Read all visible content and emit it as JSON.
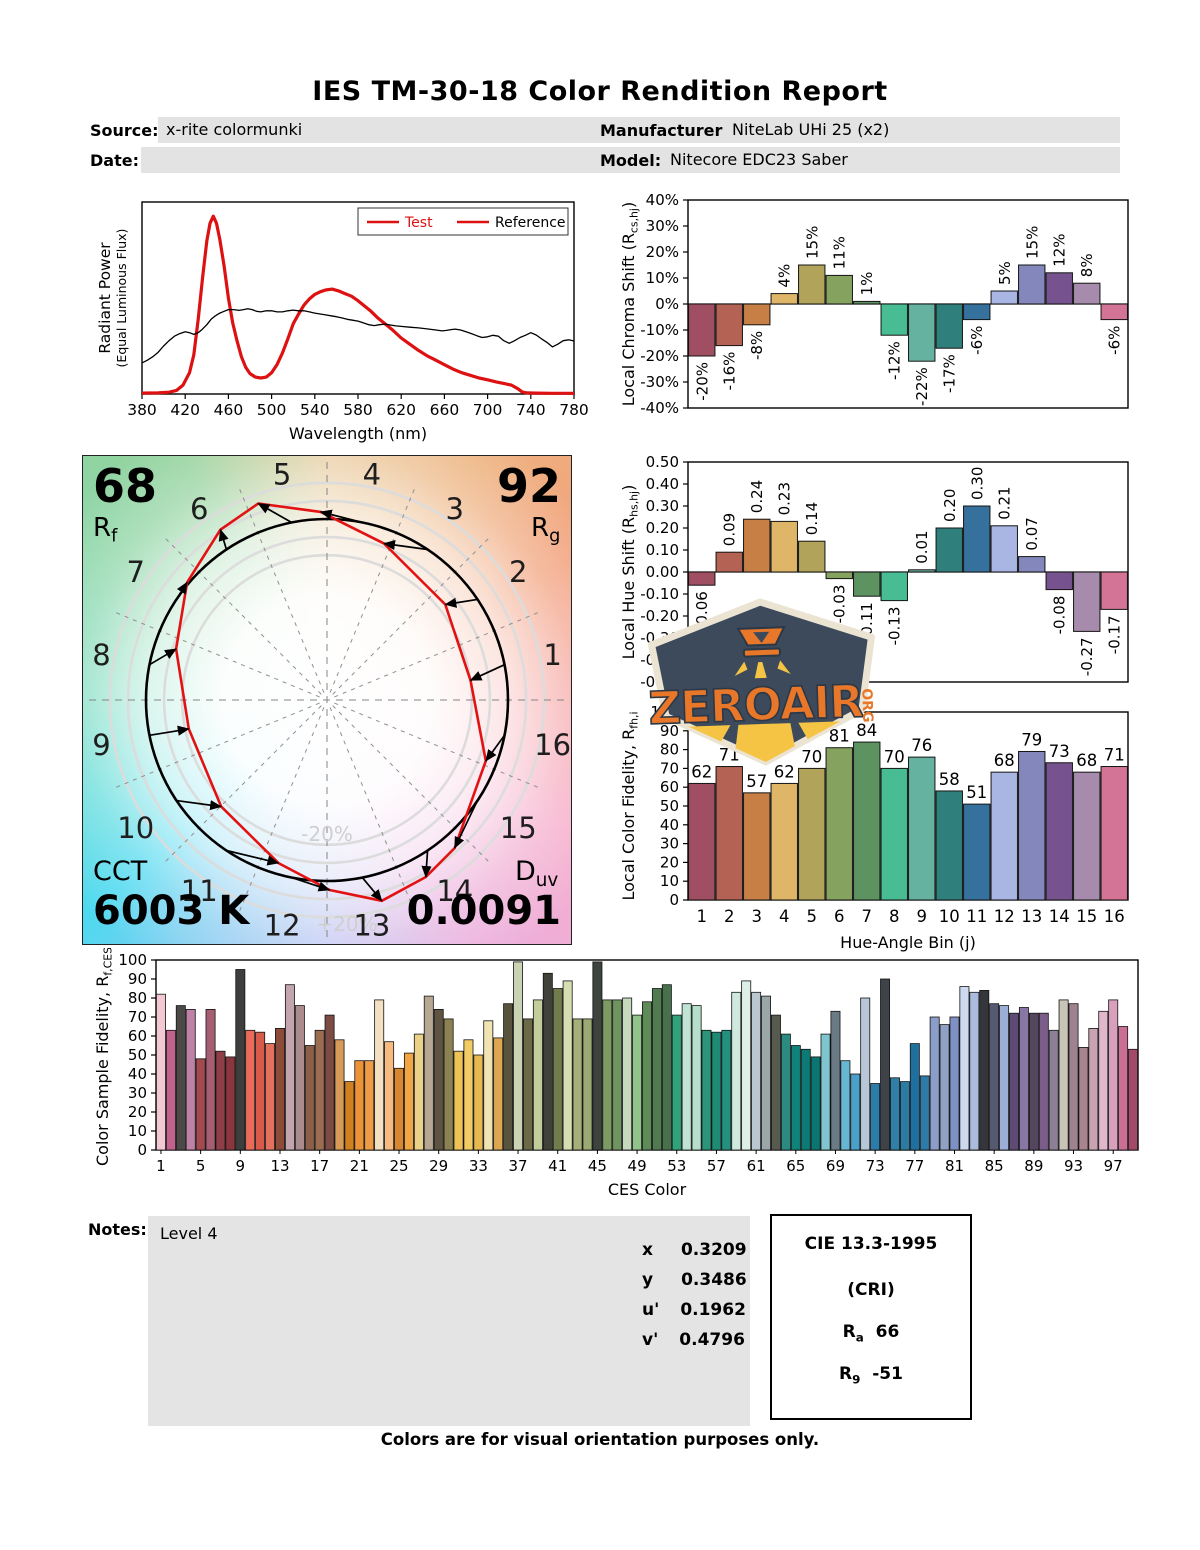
{
  "title": "IES TM-30-18 Color Rendition Report",
  "header": {
    "source_label": "Source:",
    "source_value": "x-rite colormunki",
    "date_label": "Date:",
    "date_value": "",
    "manufacturer_label": "Manufacturer:",
    "manufacturer_value": "NiteLab UHi 25 (x2)",
    "model_label": "Model:",
    "model_value": "Nitecore EDC23 Saber"
  },
  "logo": {
    "text": "ZEROAIR",
    "suffix": "ORG"
  },
  "notes": {
    "label": "Notes:",
    "text": "Level 4"
  },
  "chromaticity": {
    "rows": [
      {
        "label": "x",
        "value": "0.3209"
      },
      {
        "label": "y",
        "value": "0.3486"
      },
      {
        "label": "u'",
        "value": "0.1962"
      },
      {
        "label": "v'",
        "value": "0.4796"
      }
    ]
  },
  "cri": {
    "title": "CIE 13.3-1995",
    "subtitle": "(CRI)",
    "ra_base": "R",
    "ra_sub": "a",
    "ra_value": "66",
    "r9_base": "R",
    "r9_sub": "9",
    "r9_value": "-51"
  },
  "footer": "Colors are for visual orientation purposes only.",
  "hue_bin_colors": [
    "#a04e62",
    "#b46253",
    "#c77f46",
    "#dfb667",
    "#b1a35a",
    "#85a35f",
    "#5d9361",
    "#48bd94",
    "#66b2a1",
    "#2f7f7c",
    "#36719d",
    "#a9b5e2",
    "#8487bc",
    "#76538f",
    "#a68bac",
    "#d37496"
  ],
  "chart_data": [
    {
      "id": "spectral",
      "type": "line",
      "title": "",
      "xlabel": "Wavelength (nm)",
      "ylabel_line1": "Radiant Power",
      "ylabel_line2": "(Equal Luminous Flux)",
      "xlim": [
        380,
        780
      ],
      "ylim": [
        0,
        1.08
      ],
      "xticks": [
        380,
        420,
        460,
        500,
        540,
        580,
        620,
        660,
        700,
        740,
        780
      ],
      "legend": [
        {
          "name": "Test",
          "color": "#dd1111",
          "text_color": "#dd1111"
        },
        {
          "name": "Reference",
          "color": "#dd1111",
          "text_color": "#000000"
        }
      ],
      "series": [
        {
          "name": "Test",
          "color": "#dd1111",
          "width": 3.2,
          "points": [
            [
              380,
              0.005
            ],
            [
              395,
              0.006
            ],
            [
              405,
              0.01
            ],
            [
              412,
              0.02
            ],
            [
              418,
              0.05
            ],
            [
              424,
              0.12
            ],
            [
              428,
              0.22
            ],
            [
              432,
              0.42
            ],
            [
              436,
              0.65
            ],
            [
              440,
              0.86
            ],
            [
              443,
              0.96
            ],
            [
              446,
              1.0
            ],
            [
              449,
              0.96
            ],
            [
              452,
              0.87
            ],
            [
              456,
              0.72
            ],
            [
              460,
              0.54
            ],
            [
              464,
              0.4
            ],
            [
              468,
              0.3
            ],
            [
              472,
              0.21
            ],
            [
              476,
              0.15
            ],
            [
              480,
              0.115
            ],
            [
              485,
              0.095
            ],
            [
              490,
              0.09
            ],
            [
              495,
              0.095
            ],
            [
              500,
              0.12
            ],
            [
              505,
              0.165
            ],
            [
              510,
              0.23
            ],
            [
              515,
              0.31
            ],
            [
              520,
              0.395
            ],
            [
              525,
              0.45
            ],
            [
              530,
              0.5
            ],
            [
              535,
              0.535
            ],
            [
              540,
              0.56
            ],
            [
              545,
              0.575
            ],
            [
              550,
              0.585
            ],
            [
              556,
              0.59
            ],
            [
              562,
              0.58
            ],
            [
              568,
              0.565
            ],
            [
              574,
              0.55
            ],
            [
              580,
              0.525
            ],
            [
              586,
              0.495
            ],
            [
              592,
              0.465
            ],
            [
              598,
              0.43
            ],
            [
              605,
              0.395
            ],
            [
              612,
              0.36
            ],
            [
              620,
              0.315
            ],
            [
              628,
              0.28
            ],
            [
              636,
              0.245
            ],
            [
              644,
              0.215
            ],
            [
              652,
              0.19
            ],
            [
              660,
              0.165
            ],
            [
              668,
              0.14
            ],
            [
              676,
              0.12
            ],
            [
              684,
              0.105
            ],
            [
              692,
              0.09
            ],
            [
              700,
              0.08
            ],
            [
              708,
              0.068
            ],
            [
              716,
              0.058
            ],
            [
              722,
              0.05
            ],
            [
              728,
              0.03
            ],
            [
              732,
              0.012
            ],
            [
              736,
              0.006
            ],
            [
              745,
              0.005
            ],
            [
              760,
              0.004
            ],
            [
              780,
              0.004
            ]
          ]
        },
        {
          "name": "Reference",
          "color": "#000000",
          "width": 1.3,
          "points": [
            [
              380,
              0.175
            ],
            [
              385,
              0.19
            ],
            [
              390,
              0.21
            ],
            [
              395,
              0.235
            ],
            [
              400,
              0.27
            ],
            [
              405,
              0.3
            ],
            [
              410,
              0.325
            ],
            [
              415,
              0.34
            ],
            [
              420,
              0.35
            ],
            [
              424,
              0.345
            ],
            [
              428,
              0.335
            ],
            [
              432,
              0.345
            ],
            [
              436,
              0.365
            ],
            [
              440,
              0.39
            ],
            [
              444,
              0.42
            ],
            [
              448,
              0.44
            ],
            [
              452,
              0.455
            ],
            [
              456,
              0.465
            ],
            [
              460,
              0.475
            ],
            [
              465,
              0.475
            ],
            [
              470,
              0.47
            ],
            [
              474,
              0.475
            ],
            [
              478,
              0.48
            ],
            [
              482,
              0.475
            ],
            [
              486,
              0.465
            ],
            [
              490,
              0.462
            ],
            [
              495,
              0.468
            ],
            [
              500,
              0.468
            ],
            [
              505,
              0.462
            ],
            [
              510,
              0.462
            ],
            [
              515,
              0.468
            ],
            [
              520,
              0.472
            ],
            [
              525,
              0.468
            ],
            [
              530,
              0.468
            ],
            [
              535,
              0.462
            ],
            [
              540,
              0.455
            ],
            [
              545,
              0.45
            ],
            [
              550,
              0.445
            ],
            [
              555,
              0.44
            ],
            [
              560,
              0.435
            ],
            [
              565,
              0.428
            ],
            [
              570,
              0.42
            ],
            [
              575,
              0.415
            ],
            [
              580,
              0.41
            ],
            [
              585,
              0.4
            ],
            [
              590,
              0.39
            ],
            [
              595,
              0.385
            ],
            [
              600,
              0.39
            ],
            [
              605,
              0.393
            ],
            [
              610,
              0.388
            ],
            [
              615,
              0.383
            ],
            [
              620,
              0.38
            ],
            [
              628,
              0.376
            ],
            [
              636,
              0.372
            ],
            [
              644,
              0.366
            ],
            [
              652,
              0.36
            ],
            [
              658,
              0.355
            ],
            [
              662,
              0.358
            ],
            [
              666,
              0.362
            ],
            [
              670,
              0.365
            ],
            [
              675,
              0.36
            ],
            [
              680,
              0.35
            ],
            [
              685,
              0.34
            ],
            [
              690,
              0.328
            ],
            [
              695,
              0.318
            ],
            [
              700,
              0.322
            ],
            [
              705,
              0.33
            ],
            [
              710,
              0.325
            ],
            [
              715,
              0.3
            ],
            [
              720,
              0.285
            ],
            [
              725,
              0.3
            ],
            [
              730,
              0.318
            ],
            [
              735,
              0.33
            ],
            [
              740,
              0.345
            ],
            [
              745,
              0.332
            ],
            [
              750,
              0.31
            ],
            [
              755,
              0.29
            ],
            [
              760,
              0.265
            ],
            [
              765,
              0.28
            ],
            [
              770,
              0.3
            ],
            [
              775,
              0.305
            ],
            [
              780,
              0.298
            ]
          ]
        }
      ]
    },
    {
      "id": "chroma_shift",
      "type": "bar",
      "ylabel_parts": [
        {
          "t": "Local Chroma Shift (R"
        },
        {
          "s": "cs,hj"
        },
        {
          "t": ")"
        }
      ],
      "categories": [
        1,
        2,
        3,
        4,
        5,
        6,
        7,
        8,
        9,
        10,
        11,
        12,
        13,
        14,
        15,
        16
      ],
      "values": [
        -20,
        -16,
        -8,
        4,
        15,
        11,
        1,
        -12,
        -22,
        -17,
        -6,
        5,
        15,
        12,
        8,
        -6
      ],
      "labels": [
        "-20%",
        "-16%",
        "-8%",
        "4%",
        "15%",
        "11%",
        "1%",
        "-12%",
        "-22%",
        "-17%",
        "-6%",
        "5%",
        "15%",
        "12%",
        "8%",
        "-6%"
      ],
      "ylim": [
        -40,
        40
      ],
      "ytick_step": 10,
      "ytick_suffix": "%"
    },
    {
      "id": "hue_shift",
      "type": "bar",
      "ylabel_parts": [
        {
          "t": "Local Hue Shift (R"
        },
        {
          "s": "hs,hj"
        },
        {
          "t": ")"
        }
      ],
      "categories": [
        1,
        2,
        3,
        4,
        5,
        6,
        7,
        8,
        9,
        10,
        11,
        12,
        13,
        14,
        15,
        16
      ],
      "values": [
        -0.06,
        0.09,
        0.24,
        0.23,
        0.14,
        -0.03,
        -0.11,
        -0.13,
        0.01,
        0.2,
        0.3,
        0.21,
        0.07,
        -0.08,
        -0.27,
        -0.17
      ],
      "labels": [
        "-0.06",
        "0.09",
        "0.24",
        "0.23",
        "0.14",
        "-0.03",
        "-0.11",
        "-0.13",
        "0.01",
        "0.20",
        "0.30",
        "0.21",
        "0.07",
        "-0.08",
        "-0.27",
        "-0.17"
      ],
      "ylim": [
        -0.5,
        0.5
      ],
      "ytick_step": 0.1
    },
    {
      "id": "local_fidelity",
      "type": "bar",
      "ylabel_parts": [
        {
          "t": "Local Color Fidelity, R"
        },
        {
          "s": "fh,i"
        }
      ],
      "xlabel": "Hue-Angle Bin (j)",
      "categories": [
        1,
        2,
        3,
        4,
        5,
        6,
        7,
        8,
        9,
        10,
        11,
        12,
        13,
        14,
        15,
        16
      ],
      "values": [
        62,
        71,
        57,
        62,
        70,
        81,
        84,
        70,
        76,
        58,
        51,
        68,
        79,
        73,
        68,
        71
      ],
      "ylim": [
        0,
        100
      ],
      "ytick_step": 10
    },
    {
      "id": "color_vector_graphic",
      "type": "polar_vector",
      "rf_value": "68",
      "rf_base": "R",
      "rf_sub": "f",
      "rg_value": "92",
      "rg_base": "R",
      "rg_sub": "g",
      "cct_label": "CCT",
      "cct_value": "6003 K",
      "duv_base": "D",
      "duv_sub": "uv",
      "duv_value": "0.0091",
      "ring_label_inner": "-20%",
      "ring_label_outer": "+20%",
      "bins": [
        1,
        2,
        3,
        4,
        5,
        6,
        7,
        8,
        9,
        10,
        11,
        12,
        13,
        14,
        15,
        16
      ],
      "chroma_shift_pct": [
        -20,
        -16,
        -8,
        4,
        15,
        11,
        1,
        -12,
        -22,
        -17,
        -6,
        5,
        15,
        12,
        8,
        -6
      ],
      "hue_shift_rad": [
        -0.06,
        0.09,
        0.24,
        0.23,
        0.14,
        -0.03,
        -0.11,
        -0.13,
        0.01,
        0.2,
        0.3,
        0.21,
        0.07,
        -0.08,
        -0.27,
        -0.17
      ],
      "test_color": "#e31212",
      "reference_color": "#000000"
    },
    {
      "id": "ces",
      "type": "bar",
      "ylabel_parts": [
        {
          "t": "Color Sample Fidelity, R"
        },
        {
          "s": "f,CESi"
        }
      ],
      "xlabel": "CES Color",
      "tick_start": 1,
      "tick_step": 4,
      "ylim": [
        0,
        100
      ],
      "ytick_step": 10,
      "values": [
        82,
        63,
        76,
        74,
        48,
        74,
        52,
        49,
        95,
        63,
        62,
        56,
        64,
        87,
        76,
        55,
        63,
        71,
        58,
        36,
        47,
        47,
        79,
        57,
        43,
        51,
        61,
        81,
        74,
        69,
        52,
        58,
        50,
        68,
        59,
        77,
        99,
        69,
        79,
        93,
        85,
        89,
        69,
        69,
        99,
        79,
        79,
        80,
        71,
        78,
        85,
        87,
        71,
        77,
        76,
        63,
        62,
        63,
        83,
        89,
        83,
        81,
        71,
        61,
        55,
        53,
        49,
        61,
        73,
        47,
        40,
        80,
        35,
        90,
        38,
        36,
        56,
        39,
        70,
        66,
        70,
        86,
        83,
        84,
        77,
        76,
        72,
        75,
        72,
        72,
        63,
        79,
        77,
        54,
        64,
        73,
        79,
        65,
        53
      ],
      "colors": [
        "#f3c8d3",
        "#c2618b",
        "#4c4a49",
        "#bd82a5",
        "#a34a51",
        "#a55e72",
        "#8f3e47",
        "#8c353f",
        "#3e3e3c",
        "#ea6b59",
        "#d85a4a",
        "#e4705e",
        "#8d4b3a",
        "#c3a5ad",
        "#ab8c8c",
        "#8d5e48",
        "#9c6c51",
        "#7c4b43",
        "#d89a57",
        "#d0801f",
        "#ec9338",
        "#ee9c45",
        "#f3e0c2",
        "#f7ba80",
        "#d78730",
        "#f1a646",
        "#ead187",
        "#b5a792",
        "#5e5441",
        "#8b8151",
        "#eec255",
        "#f1cb64",
        "#e5b950",
        "#f1e4b2",
        "#dda751",
        "#58533d",
        "#cad4b5",
        "#6c6949",
        "#c3cd9b",
        "#404139",
        "#707c4b",
        "#d6ddb1",
        "#a4af79",
        "#9ba972",
        "#3d433d",
        "#7c9b63",
        "#70945f",
        "#c6d9bd",
        "#90c489",
        "#5e8b58",
        "#507b51",
        "#47714c",
        "#2fa379",
        "#c0e4d3",
        "#b6decc",
        "#2b947a",
        "#208b75",
        "#24917f",
        "#d0e9de",
        "#deefe7",
        "#b9c7d0",
        "#9ba6a9",
        "#565a4f",
        "#2b8b81",
        "#0f8379",
        "#0c7b75",
        "#0b7671",
        "#7fc5cf",
        "#6b7b85",
        "#67b6d3",
        "#4ba0c9",
        "#b8c7d7",
        "#2b7ca9",
        "#3d4349",
        "#307fa7",
        "#2b7ba3",
        "#20709f",
        "#2f7ba7",
        "#8b9dc9",
        "#8fa1c5",
        "#7e90c4",
        "#ccd9ee",
        "#aabbdd",
        "#35363b",
        "#555a70",
        "#9baed6",
        "#5d4a75",
        "#8877a5",
        "#56455f",
        "#7a5d88",
        "#8c7f96",
        "#c9c4b8",
        "#9f8290",
        "#a8848f",
        "#c9a3b2",
        "#e0b7cb",
        "#d9a0bd",
        "#ca6f93",
        "#a34a68"
      ]
    }
  ]
}
